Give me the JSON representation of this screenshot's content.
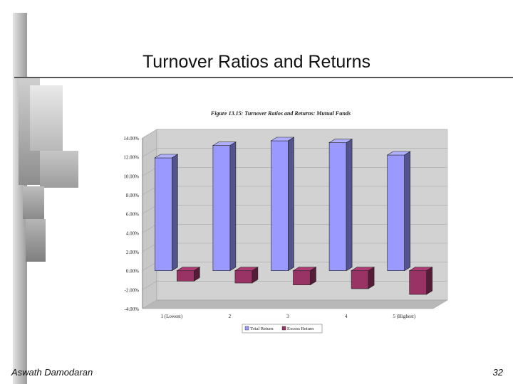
{
  "slide": {
    "title": "Turnover Ratios and Returns",
    "footer_left": "Aswath Damodaran",
    "page_number": "32"
  },
  "chart_data": {
    "type": "bar",
    "title": "Figure 13.15: Turnover Ratios and Returns: Mutual Funds",
    "categories": [
      "1 (Lowest)",
      "2",
      "3",
      "4",
      "5 (Highest)"
    ],
    "series": [
      {
        "name": "Total Return",
        "values": [
          11.9,
          13.2,
          13.7,
          13.5,
          12.2
        ],
        "color": "#9999ff"
      },
      {
        "name": "Excess Return",
        "values": [
          -1.1,
          -1.3,
          -1.5,
          -1.9,
          -2.5
        ],
        "color": "#993366"
      }
    ],
    "y_ticks": [
      "14.00%",
      "12.00%",
      "10.00%",
      "8.00%",
      "6.00%",
      "4.00%",
      "2.00%",
      "0.00%",
      "-2.00%",
      "-4.00%"
    ],
    "ylim": [
      -4,
      14
    ],
    "legend_position": "bottom",
    "grid": true
  }
}
